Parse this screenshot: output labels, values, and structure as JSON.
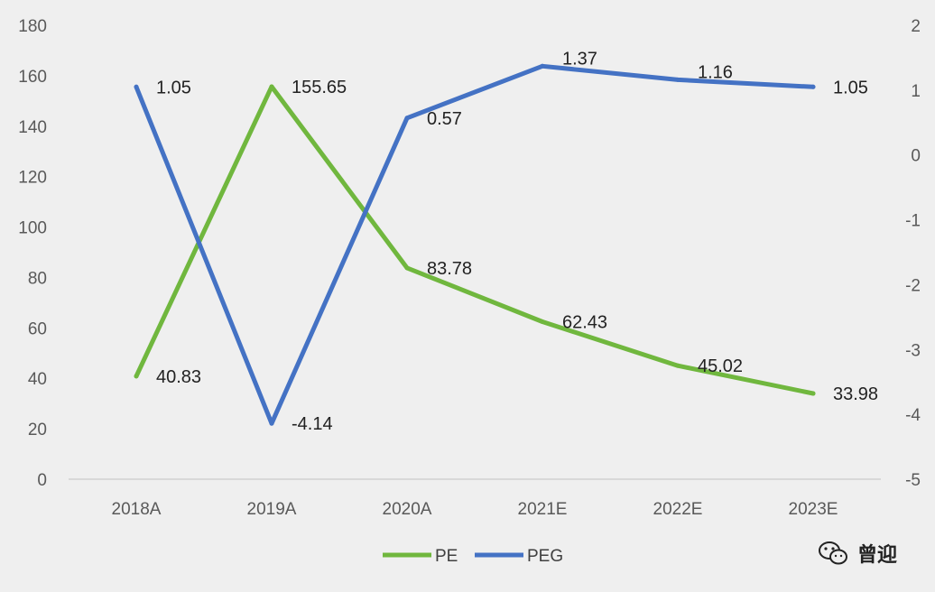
{
  "chart_data": {
    "type": "line",
    "title": "",
    "categories": [
      "2018A",
      "2019A",
      "2020A",
      "2021E",
      "2022E",
      "2023E"
    ],
    "y_left": {
      "min": 0,
      "max": 180,
      "step": 20,
      "ticks": [
        "0",
        "20",
        "40",
        "60",
        "80",
        "100",
        "120",
        "140",
        "160",
        "180"
      ]
    },
    "y_right": {
      "min": -5,
      "max": 2,
      "step": 1,
      "ticks": [
        "-5",
        "-4",
        "-3",
        "-2",
        "-1",
        "0",
        "1",
        "2"
      ]
    },
    "grid": false,
    "legend_position": "bottom",
    "series": [
      {
        "name": "PE",
        "axis": "left",
        "color": "#70b73e",
        "values": [
          40.83,
          155.65,
          83.78,
          62.43,
          45.02,
          33.98
        ],
        "labels": [
          "40.83",
          "155.65",
          "83.78",
          "62.43",
          "45.02",
          "33.98"
        ]
      },
      {
        "name": "PEG",
        "axis": "right",
        "color": "#4472c4",
        "values": [
          1.05,
          -4.14,
          0.57,
          1.37,
          1.16,
          1.05
        ],
        "labels": [
          "1.05",
          "-4.14",
          "0.57",
          "1.37",
          "1.16",
          "1.05"
        ]
      }
    ]
  },
  "watermark": {
    "icon": "wechat-icon",
    "text": "曾迎"
  }
}
